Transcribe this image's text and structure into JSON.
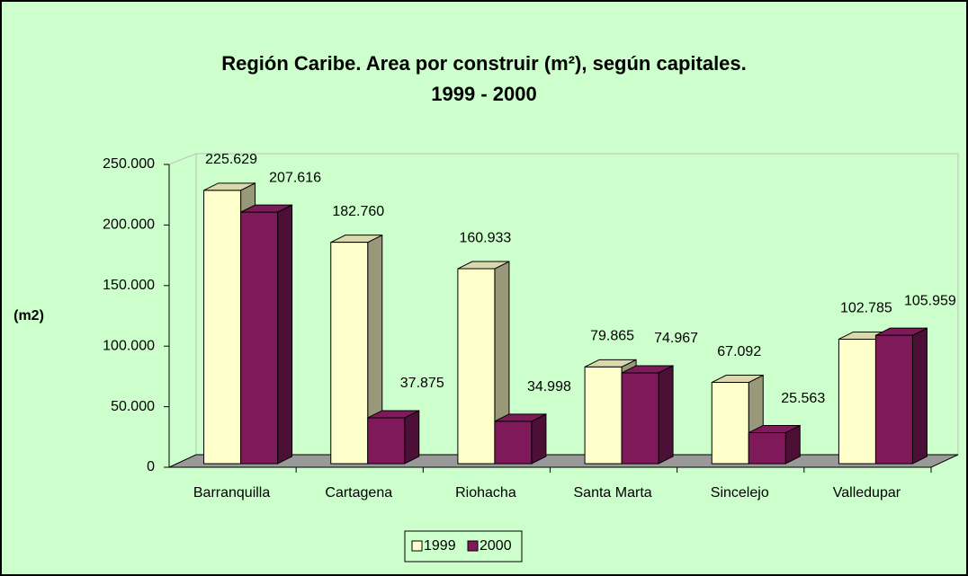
{
  "chart_data": {
    "type": "bar3d",
    "title": "Región Caribe.  Area por construir (m²), según capitales.",
    "subtitle": "1999 - 2000",
    "y_label": "(m2)",
    "categories": [
      "Barranquilla",
      "Cartagena",
      "Riohacha",
      "Santa Marta",
      "Sincelejo",
      "Valledupar"
    ],
    "series": [
      {
        "name": "1999",
        "color": "#ffffcc",
        "values": [
          225629,
          182760,
          160933,
          79865,
          67092,
          102785
        ],
        "value_labels": [
          "225.629",
          "182.760",
          "160.933",
          "79.865",
          "67.092",
          "102.785"
        ]
      },
      {
        "name": "2000",
        "color": "#7f1a5a",
        "values": [
          207616,
          37875,
          34998,
          74967,
          25563,
          105959
        ],
        "value_labels": [
          "207.616",
          "37.875",
          "34.998",
          "74.967",
          "25.563",
          "105.959"
        ]
      }
    ],
    "ylim": [
      0,
      250000
    ],
    "yticks": [
      0,
      {
        "value": 50000,
        "label": "50.000"
      },
      {
        "value": 100000,
        "label": "100.000"
      },
      {
        "value": 150000,
        "label": "150.000"
      },
      {
        "value": 200000,
        "label": "200.000"
      },
      {
        "value": 250000,
        "label": "250.000"
      }
    ],
    "legend": "bottom"
  }
}
